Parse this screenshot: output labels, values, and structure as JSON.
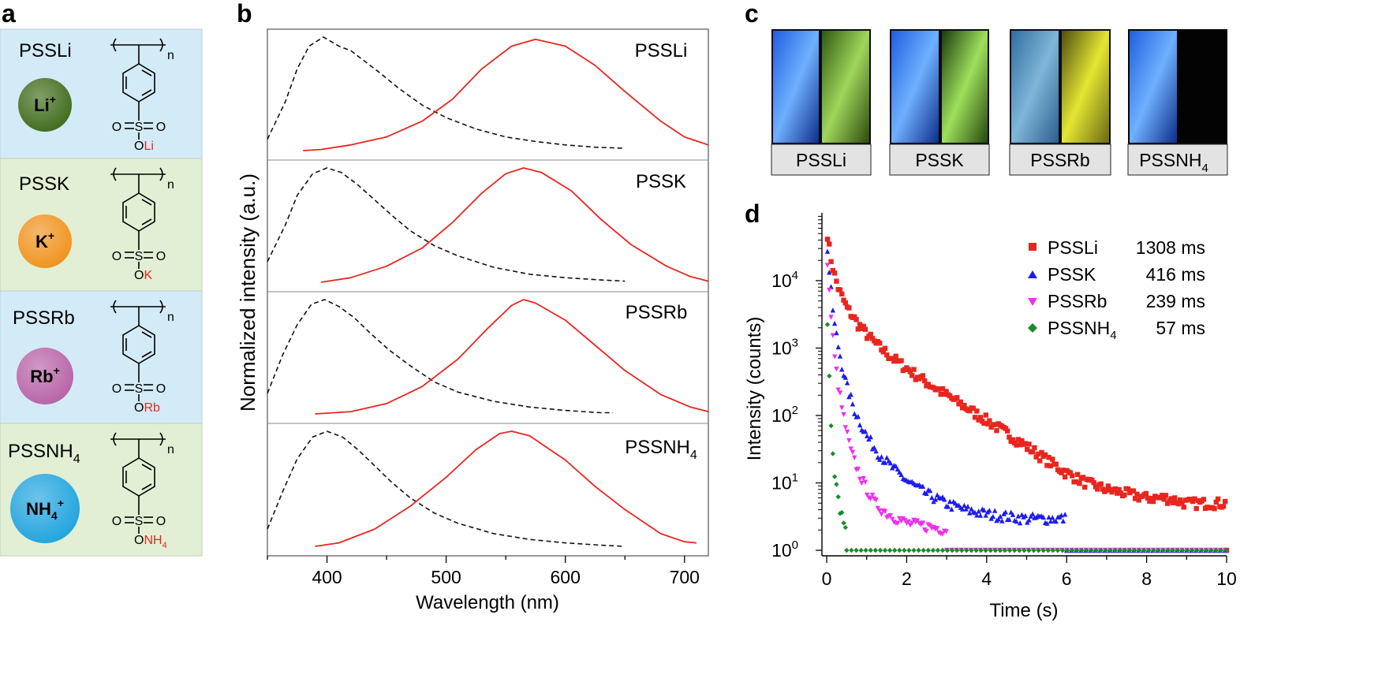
{
  "panel_labels": {
    "a": "a",
    "b": "b",
    "c": "c",
    "d": "d"
  },
  "colors": {
    "panel_blue": "#d3ebf7",
    "panel_green": "#e2efd4",
    "emission": "#e8261f",
    "excitation": "#111111",
    "sample_li": "#e8261f",
    "sample_k": "#1c1cf0",
    "sample_rb": "#f02ef0",
    "sample_nh4": "#1c8a28"
  },
  "panel_a": {
    "items": [
      {
        "name": "PSSLi",
        "name_base": "PSSLi",
        "name_sub": "",
        "ion_base": "Li",
        "ion_sub": "",
        "ion_sup": "+",
        "ion_color": "#3f6b1a",
        "bg": "blue",
        "counter_base": "Li",
        "counter_sub": ""
      },
      {
        "name": "PSSK",
        "name_base": "PSSK",
        "name_sub": "",
        "ion_base": "K",
        "ion_sub": "",
        "ion_sup": "+",
        "ion_color": "#f0921c",
        "bg": "green",
        "counter_base": "K",
        "counter_sub": ""
      },
      {
        "name": "PSSRb",
        "name_base": "PSSRb",
        "name_sub": "",
        "ion_base": "Rb",
        "ion_sub": "",
        "ion_sup": "+",
        "ion_color": "#b762a6",
        "bg": "blue",
        "counter_base": "Rb",
        "counter_sub": ""
      },
      {
        "name": "PSSNH4",
        "name_base": "PSSNH",
        "name_sub": "4",
        "ion_base": "NH",
        "ion_sub": "4",
        "ion_sup": "+",
        "ion_color": "#1fa3de",
        "bg": "green",
        "counter_base": "NH",
        "counter_sub": "4"
      }
    ],
    "structure": {
      "repeat_label": "n",
      "sulfonyl_left": "O",
      "sulfonyl_center": "S",
      "sulfonyl_right": "O",
      "ester_o": "O"
    }
  },
  "panel_c": {
    "labels": [
      {
        "base": "PSSLi",
        "sub": ""
      },
      {
        "base": "PSSK",
        "sub": ""
      },
      {
        "base": "PSSRb",
        "sub": ""
      },
      {
        "base": "PSSNH",
        "sub": "4"
      }
    ]
  },
  "chart_data": [
    {
      "type": "line",
      "panel": "b",
      "title": "",
      "xlabel": "Wavelength (nm)",
      "ylabel": "Normalized intensity (a.u.)",
      "xlim": [
        350,
        720
      ],
      "xticks": [
        400,
        500,
        600,
        700
      ],
      "stacked_subplots": [
        {
          "label_base": "PSSLi",
          "label_sub": "",
          "excitation": {
            "x": [
              350,
              365,
              375,
              385,
              397,
              410,
              420,
              430,
              445,
              460,
              480,
              500,
              525,
              550,
              575,
              600,
              625,
              650
            ],
            "y": [
              0.1,
              0.43,
              0.72,
              0.92,
              1.0,
              0.92,
              0.88,
              0.8,
              0.68,
              0.55,
              0.4,
              0.29,
              0.19,
              0.12,
              0.08,
              0.05,
              0.03,
              0.02
            ]
          },
          "emission": {
            "x": [
              380,
              395,
              420,
              450,
              480,
              505,
              530,
              555,
              575,
              600,
              625,
              650,
              680,
              700,
              720
            ],
            "y": [
              0.0,
              0.01,
              0.05,
              0.12,
              0.26,
              0.45,
              0.72,
              0.92,
              0.98,
              0.92,
              0.75,
              0.52,
              0.26,
              0.12,
              0.05
            ]
          }
        },
        {
          "label_base": "PSSK",
          "label_sub": "",
          "excitation": {
            "x": [
              350,
              365,
              375,
              388,
              400,
              412,
              425,
              440,
              455,
              470,
              490,
              510,
              540,
              570,
              600,
              630,
              650
            ],
            "y": [
              0.18,
              0.5,
              0.76,
              0.95,
              1.0,
              0.96,
              0.86,
              0.72,
              0.58,
              0.45,
              0.32,
              0.23,
              0.13,
              0.07,
              0.04,
              0.02,
              0.01
            ]
          },
          "emission": {
            "x": [
              395,
              420,
              450,
              480,
              505,
              530,
              550,
              565,
              580,
              605,
              630,
              655,
              685,
              705,
              720
            ],
            "y": [
              0.0,
              0.04,
              0.14,
              0.3,
              0.52,
              0.78,
              0.95,
              1.0,
              0.96,
              0.8,
              0.55,
              0.33,
              0.14,
              0.05,
              0.01
            ]
          }
        },
        {
          "label_base": "PSSRb",
          "label_sub": "",
          "excitation": {
            "x": [
              350,
              363,
              375,
              387,
              398,
              410,
              423,
              437,
              452,
              470,
              490,
              510,
              540,
              570,
              600,
              630,
              640
            ],
            "y": [
              0.18,
              0.52,
              0.78,
              0.96,
              1.0,
              0.94,
              0.84,
              0.7,
              0.56,
              0.42,
              0.28,
              0.19,
              0.11,
              0.06,
              0.03,
              0.01,
              0.01
            ]
          },
          "emission": {
            "x": [
              390,
              420,
              450,
              480,
              510,
              535,
              555,
              565,
              575,
              600,
              625,
              650,
              680,
              705,
              720
            ],
            "y": [
              0.0,
              0.02,
              0.09,
              0.24,
              0.48,
              0.75,
              0.95,
              1.0,
              0.97,
              0.82,
              0.6,
              0.38,
              0.17,
              0.06,
              0.02
            ]
          }
        },
        {
          "label_base": "PSSNH",
          "label_sub": "4",
          "excitation": {
            "x": [
              350,
              363,
              375,
              388,
              400,
              413,
              426,
              440,
              455,
              470,
              490,
              510,
              540,
              570,
              600,
              630,
              650
            ],
            "y": [
              0.15,
              0.48,
              0.76,
              0.95,
              1.0,
              0.95,
              0.84,
              0.7,
              0.55,
              0.42,
              0.29,
              0.2,
              0.11,
              0.06,
              0.03,
              0.01,
              0.0
            ]
          },
          "emission": {
            "x": [
              390,
              410,
              440,
              470,
              500,
              525,
              545,
              555,
              570,
              600,
              625,
              650,
              680,
              700,
              710
            ],
            "y": [
              0.0,
              0.03,
              0.15,
              0.35,
              0.6,
              0.84,
              0.98,
              1.0,
              0.96,
              0.75,
              0.52,
              0.32,
              0.11,
              0.04,
              0.03
            ]
          }
        }
      ]
    },
    {
      "type": "scatter",
      "panel": "d",
      "title": "",
      "xlabel": "Time (s)",
      "ylabel": "Intensity (counts)",
      "yscale": "log",
      "xlim": [
        -0.1,
        10
      ],
      "ylim": [
        0.8,
        80000
      ],
      "xticks": [
        0,
        2,
        4,
        6,
        8,
        10
      ],
      "yticks": [
        {
          "base": "10",
          "exp": "0"
        },
        {
          "base": "10",
          "exp": "1"
        },
        {
          "base": "10",
          "exp": "2"
        },
        {
          "base": "10",
          "exp": "3"
        },
        {
          "base": "10",
          "exp": "4"
        }
      ],
      "legend_position": "top-right",
      "series": [
        {
          "name": "PSSLi",
          "label_base": "PSSLi",
          "label_sub": "",
          "lifetime": "1308 ms",
          "marker": "square",
          "color_key": "sample_li",
          "points": [
            [
              0.02,
              50000
            ],
            [
              0.05,
              35000
            ],
            [
              0.1,
              22000
            ],
            [
              0.2,
              12000
            ],
            [
              0.3,
              7500
            ],
            [
              0.5,
              4000
            ],
            [
              0.8,
              2200
            ],
            [
              1.2,
              1200
            ],
            [
              1.6,
              750
            ],
            [
              2.0,
              500
            ],
            [
              2.5,
              310
            ],
            [
              3.0,
              200
            ],
            [
              3.5,
              130
            ],
            [
              4.0,
              85
            ],
            [
              4.5,
              55
            ],
            [
              5.0,
              35
            ],
            [
              5.5,
              22
            ],
            [
              6.0,
              14
            ],
            [
              6.5,
              10
            ],
            [
              7.0,
              8
            ],
            [
              7.5,
              7
            ],
            [
              8.0,
              6
            ],
            [
              8.5,
              6
            ],
            [
              9.0,
              5
            ],
            [
              9.5,
              5
            ],
            [
              10.0,
              5
            ]
          ]
        },
        {
          "name": "PSSK",
          "label_base": "PSSK",
          "label_sub": "",
          "lifetime": "416 ms",
          "marker": "triangle",
          "color_key": "sample_k",
          "points": [
            [
              0.02,
              30000
            ],
            [
              0.05,
              17000
            ],
            [
              0.1,
              8000
            ],
            [
              0.15,
              4000
            ],
            [
              0.2,
              2200
            ],
            [
              0.3,
              1000
            ],
            [
              0.4,
              500
            ],
            [
              0.5,
              280
            ],
            [
              0.7,
              120
            ],
            [
              1.0,
              50
            ],
            [
              1.3,
              28
            ],
            [
              1.6,
              18
            ],
            [
              2.0,
              11
            ],
            [
              2.5,
              7
            ],
            [
              3.0,
              5
            ],
            [
              3.5,
              4
            ],
            [
              4.0,
              3.5
            ],
            [
              5.0,
              3
            ],
            [
              6.0,
              3
            ]
          ]
        },
        {
          "name": "PSSRb",
          "label_base": "PSSRb",
          "label_sub": "",
          "lifetime": "239 ms",
          "marker": "triangle-down",
          "color_key": "sample_rb",
          "points": [
            [
              0.02,
              20000
            ],
            [
              0.05,
              9000
            ],
            [
              0.1,
              3500
            ],
            [
              0.15,
              1500
            ],
            [
              0.2,
              700
            ],
            [
              0.3,
              250
            ],
            [
              0.4,
              110
            ],
            [
              0.5,
              55
            ],
            [
              0.6,
              30
            ],
            [
              0.8,
              14
            ],
            [
              1.0,
              8
            ],
            [
              1.2,
              5
            ],
            [
              1.5,
              3.5
            ],
            [
              2.0,
              2.5
            ],
            [
              3.0,
              2
            ]
          ]
        },
        {
          "name": "PSSNH4",
          "label_base": "PSSNH",
          "label_sub": "4",
          "lifetime": "57 ms",
          "marker": "diamond",
          "color_key": "sample_nh4",
          "points": [
            [
              0.02,
              2500
            ],
            [
              0.04,
              1000
            ],
            [
              0.06,
              450
            ],
            [
              0.08,
              200
            ],
            [
              0.1,
              100
            ],
            [
              0.15,
              35
            ],
            [
              0.2,
              15
            ],
            [
              0.25,
              8
            ],
            [
              0.3,
              5
            ],
            [
              0.4,
              3
            ],
            [
              0.5,
              2
            ]
          ]
        }
      ]
    }
  ]
}
